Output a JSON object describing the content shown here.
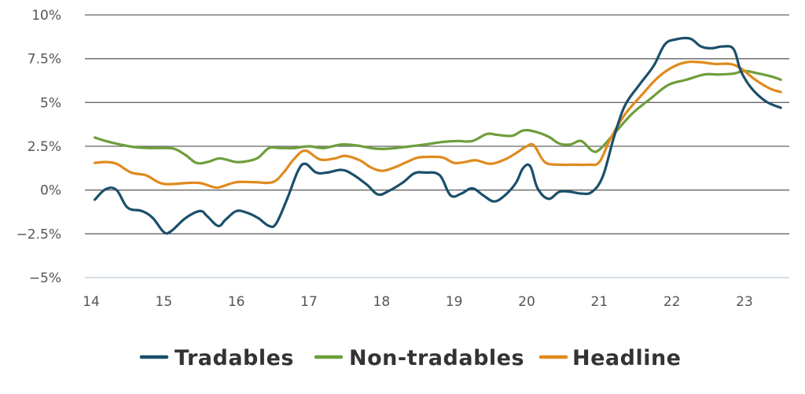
{
  "chart_data": {
    "type": "line",
    "title": "",
    "xlabel": "",
    "ylabel": "",
    "xlim": [
      14,
      23.6
    ],
    "ylim": [
      -5,
      10
    ],
    "x_ticks": [
      14,
      15,
      16,
      17,
      18,
      19,
      20,
      21,
      22,
      23
    ],
    "x_tick_labels": [
      "14",
      "15",
      "16",
      "17",
      "18",
      "19",
      "20",
      "21",
      "22",
      "23"
    ],
    "y_ticks": [
      10,
      7.5,
      5,
      2.5,
      0,
      -2.5,
      -5
    ],
    "y_tick_labels": [
      "10%",
      "7.5%",
      "5%",
      "2.5%",
      "0%",
      "−2.5%",
      "−5%"
    ],
    "grid": "horizontal",
    "legend_position": "bottom",
    "series": [
      {
        "name": "Tradables",
        "color": "#1b4f6b",
        "points": [
          [
            14.05,
            -0.55
          ],
          [
            14.2,
            0.05
          ],
          [
            14.35,
            0.0
          ],
          [
            14.5,
            -1.0
          ],
          [
            14.7,
            -1.2
          ],
          [
            14.85,
            -1.6
          ],
          [
            15.0,
            -2.4
          ],
          [
            15.1,
            -2.35
          ],
          [
            15.3,
            -1.6
          ],
          [
            15.5,
            -1.2
          ],
          [
            15.6,
            -1.5
          ],
          [
            15.75,
            -2.05
          ],
          [
            15.85,
            -1.7
          ],
          [
            16.0,
            -1.2
          ],
          [
            16.15,
            -1.3
          ],
          [
            16.3,
            -1.6
          ],
          [
            16.45,
            -2.05
          ],
          [
            16.55,
            -1.9
          ],
          [
            16.7,
            -0.5
          ],
          [
            16.85,
            1.1
          ],
          [
            16.95,
            1.5
          ],
          [
            17.1,
            1.0
          ],
          [
            17.25,
            1.0
          ],
          [
            17.45,
            1.15
          ],
          [
            17.6,
            0.9
          ],
          [
            17.8,
            0.3
          ],
          [
            17.95,
            -0.25
          ],
          [
            18.1,
            -0.05
          ],
          [
            18.3,
            0.45
          ],
          [
            18.45,
            0.95
          ],
          [
            18.6,
            1.0
          ],
          [
            18.8,
            0.85
          ],
          [
            18.95,
            -0.3
          ],
          [
            19.1,
            -0.2
          ],
          [
            19.25,
            0.1
          ],
          [
            19.4,
            -0.3
          ],
          [
            19.55,
            -0.65
          ],
          [
            19.7,
            -0.3
          ],
          [
            19.85,
            0.4
          ],
          [
            19.95,
            1.25
          ],
          [
            20.05,
            1.35
          ],
          [
            20.15,
            0.1
          ],
          [
            20.3,
            -0.5
          ],
          [
            20.45,
            -0.1
          ],
          [
            20.6,
            -0.1
          ],
          [
            20.75,
            -0.2
          ],
          [
            20.9,
            -0.1
          ],
          [
            21.05,
            0.8
          ],
          [
            21.2,
            3.0
          ],
          [
            21.35,
            4.8
          ],
          [
            21.55,
            6.0
          ],
          [
            21.75,
            7.1
          ],
          [
            21.9,
            8.3
          ],
          [
            22.05,
            8.6
          ],
          [
            22.25,
            8.65
          ],
          [
            22.4,
            8.2
          ],
          [
            22.55,
            8.1
          ],
          [
            22.7,
            8.2
          ],
          [
            22.85,
            8.05
          ],
          [
            22.95,
            6.8
          ],
          [
            23.1,
            5.8
          ],
          [
            23.3,
            5.05
          ],
          [
            23.5,
            4.7
          ]
        ]
      },
      {
        "name": "Non-tradables",
        "color": "#6e9e3c",
        "points": [
          [
            14.05,
            3.0
          ],
          [
            14.2,
            2.8
          ],
          [
            14.4,
            2.6
          ],
          [
            14.6,
            2.45
          ],
          [
            14.8,
            2.4
          ],
          [
            15.0,
            2.4
          ],
          [
            15.15,
            2.35
          ],
          [
            15.3,
            2.0
          ],
          [
            15.45,
            1.55
          ],
          [
            15.6,
            1.6
          ],
          [
            15.75,
            1.8
          ],
          [
            15.85,
            1.75
          ],
          [
            16.0,
            1.6
          ],
          [
            16.15,
            1.65
          ],
          [
            16.3,
            1.85
          ],
          [
            16.45,
            2.4
          ],
          [
            16.6,
            2.4
          ],
          [
            16.8,
            2.4
          ],
          [
            17.0,
            2.5
          ],
          [
            17.2,
            2.4
          ],
          [
            17.45,
            2.6
          ],
          [
            17.65,
            2.55
          ],
          [
            17.85,
            2.4
          ],
          [
            18.0,
            2.35
          ],
          [
            18.2,
            2.4
          ],
          [
            18.4,
            2.5
          ],
          [
            18.6,
            2.6
          ],
          [
            18.85,
            2.75
          ],
          [
            19.05,
            2.8
          ],
          [
            19.25,
            2.8
          ],
          [
            19.45,
            3.2
          ],
          [
            19.6,
            3.15
          ],
          [
            19.8,
            3.1
          ],
          [
            19.95,
            3.4
          ],
          [
            20.1,
            3.35
          ],
          [
            20.3,
            3.05
          ],
          [
            20.45,
            2.65
          ],
          [
            20.6,
            2.6
          ],
          [
            20.75,
            2.8
          ],
          [
            20.9,
            2.25
          ],
          [
            21.0,
            2.3
          ],
          [
            21.2,
            3.2
          ],
          [
            21.45,
            4.35
          ],
          [
            21.7,
            5.2
          ],
          [
            21.95,
            6.0
          ],
          [
            22.2,
            6.3
          ],
          [
            22.45,
            6.6
          ],
          [
            22.65,
            6.6
          ],
          [
            22.85,
            6.65
          ],
          [
            23.0,
            6.8
          ],
          [
            23.2,
            6.65
          ],
          [
            23.4,
            6.45
          ],
          [
            23.5,
            6.3
          ]
        ]
      },
      {
        "name": "Headline",
        "color": "#e08a1e",
        "points": [
          [
            14.05,
            1.55
          ],
          [
            14.2,
            1.6
          ],
          [
            14.35,
            1.5
          ],
          [
            14.55,
            1.0
          ],
          [
            14.75,
            0.85
          ],
          [
            14.9,
            0.5
          ],
          [
            15.0,
            0.35
          ],
          [
            15.15,
            0.35
          ],
          [
            15.3,
            0.4
          ],
          [
            15.5,
            0.4
          ],
          [
            15.7,
            0.15
          ],
          [
            15.8,
            0.2
          ],
          [
            16.0,
            0.45
          ],
          [
            16.25,
            0.45
          ],
          [
            16.5,
            0.45
          ],
          [
            16.65,
            1.0
          ],
          [
            16.8,
            1.8
          ],
          [
            16.95,
            2.25
          ],
          [
            17.15,
            1.75
          ],
          [
            17.35,
            1.8
          ],
          [
            17.5,
            1.95
          ],
          [
            17.7,
            1.7
          ],
          [
            17.85,
            1.3
          ],
          [
            18.0,
            1.1
          ],
          [
            18.15,
            1.25
          ],
          [
            18.35,
            1.6
          ],
          [
            18.5,
            1.85
          ],
          [
            18.7,
            1.9
          ],
          [
            18.85,
            1.85
          ],
          [
            19.0,
            1.55
          ],
          [
            19.15,
            1.6
          ],
          [
            19.3,
            1.7
          ],
          [
            19.5,
            1.5
          ],
          [
            19.7,
            1.75
          ],
          [
            19.85,
            2.1
          ],
          [
            20.0,
            2.5
          ],
          [
            20.1,
            2.55
          ],
          [
            20.25,
            1.6
          ],
          [
            20.45,
            1.45
          ],
          [
            20.65,
            1.45
          ],
          [
            20.85,
            1.45
          ],
          [
            21.0,
            1.6
          ],
          [
            21.15,
            2.9
          ],
          [
            21.35,
            4.3
          ],
          [
            21.6,
            5.5
          ],
          [
            21.8,
            6.4
          ],
          [
            22.0,
            7.0
          ],
          [
            22.2,
            7.3
          ],
          [
            22.4,
            7.3
          ],
          [
            22.6,
            7.2
          ],
          [
            22.8,
            7.2
          ],
          [
            22.95,
            6.95
          ],
          [
            23.15,
            6.3
          ],
          [
            23.35,
            5.8
          ],
          [
            23.5,
            5.6
          ]
        ]
      }
    ]
  }
}
